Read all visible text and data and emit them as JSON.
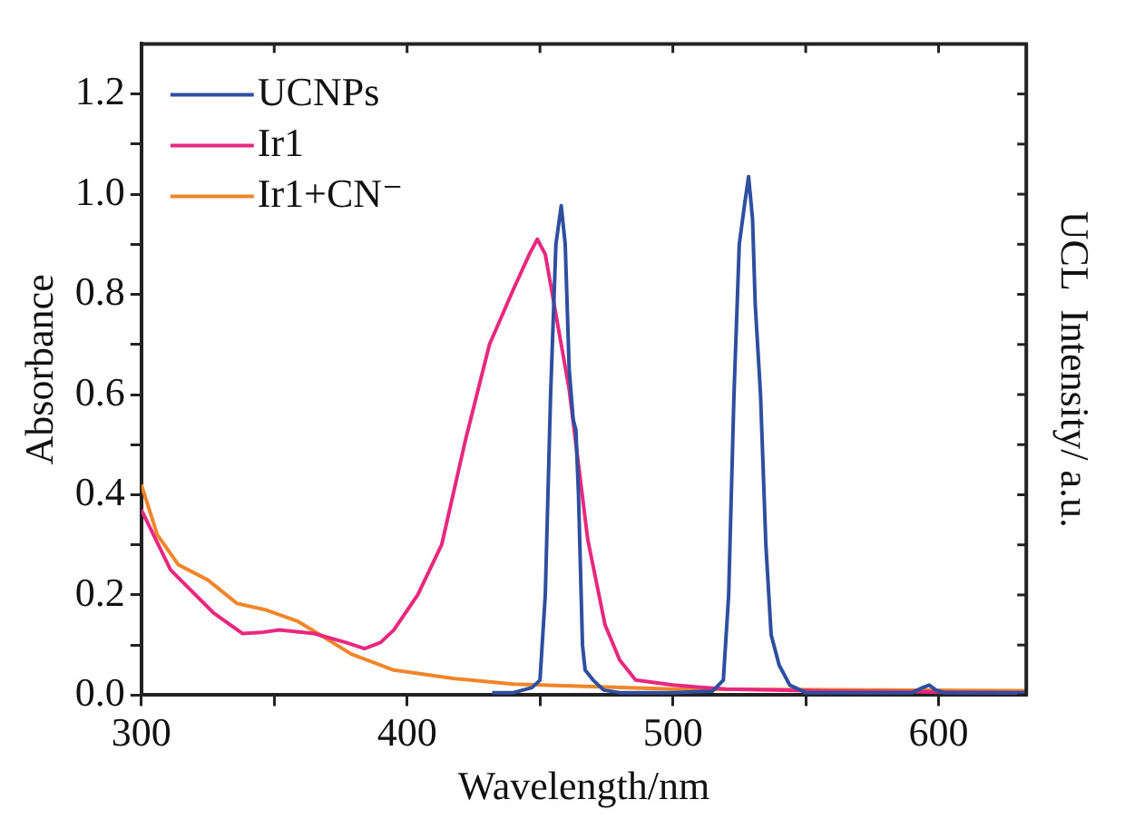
{
  "chart_data": {
    "type": "line",
    "xlabel": "Wavelength/nm",
    "ylabel": "Absorbance",
    "y2label": "UCL  Intensity/ a.u.",
    "xlim": [
      300,
      633
    ],
    "xticks": [
      300,
      {
        "value": 350,
        "label": null
      },
      400,
      {
        "value": 450,
        "label": null
      },
      500,
      {
        "value": 550,
        "label": null
      },
      600
    ],
    "ylim": [
      0,
      1.3
    ],
    "yticks": [
      "0.0",
      {
        "value": 0.1,
        "label": null
      },
      {
        "value": 0.2,
        "label": "0.2"
      },
      {
        "value": 0.3,
        "label": null
      },
      {
        "value": 0.4,
        "label": "0.4"
      },
      {
        "value": 0.5,
        "label": null
      },
      {
        "value": 0.6,
        "label": "0.6"
      },
      {
        "value": 0.7,
        "label": null
      },
      {
        "value": 0.8,
        "label": "0.8"
      },
      {
        "value": 0.9,
        "label": null
      },
      {
        "value": 1.0,
        "label": "1.0"
      },
      {
        "value": 1.1,
        "label": null
      },
      {
        "value": 1.2,
        "label": "1.2"
      }
    ],
    "grid": false,
    "legend": "top left",
    "marker": "none",
    "line_style": "solid",
    "series": [
      {
        "name": "UCNPs",
        "color": "#2e4ea0",
        "x": [
          432,
          440,
          447,
          450,
          452,
          454,
          456,
          458,
          459.5,
          461,
          462.5,
          463.5,
          464.5,
          466,
          467,
          470,
          474,
          480,
          500,
          515,
          519,
          521,
          523,
          525,
          527,
          528.5,
          530,
          531,
          533,
          535,
          537,
          540,
          544,
          550,
          590,
          594,
          596.5,
          599,
          602,
          633
        ],
        "values": [
          0.005,
          0.005,
          0.015,
          0.03,
          0.2,
          0.6,
          0.9,
          0.977,
          0.9,
          0.65,
          0.55,
          0.53,
          0.4,
          0.1,
          0.05,
          0.03,
          0.01,
          0.005,
          0.005,
          0.008,
          0.03,
          0.2,
          0.6,
          0.9,
          0.98,
          1.035,
          0.95,
          0.78,
          0.6,
          0.3,
          0.12,
          0.06,
          0.02,
          0.005,
          0.005,
          0.015,
          0.02,
          0.01,
          0.005,
          0.005
        ]
      },
      {
        "name": "Ir1",
        "color": "#e8277e",
        "x": [
          300,
          311,
          327,
          338,
          345,
          352,
          365,
          377,
          384,
          390,
          395,
          404,
          413,
          422,
          431,
          440,
          446,
          449,
          452,
          454,
          461,
          468,
          474.5,
          480,
          486,
          500,
          520,
          560,
          633
        ],
        "values": [
          0.37,
          0.25,
          0.165,
          0.123,
          0.125,
          0.13,
          0.123,
          0.105,
          0.093,
          0.105,
          0.13,
          0.2,
          0.3,
          0.51,
          0.7,
          0.81,
          0.88,
          0.91,
          0.88,
          0.82,
          0.61,
          0.31,
          0.14,
          0.07,
          0.03,
          0.02,
          0.012,
          0.008,
          0.005
        ]
      },
      {
        "name": "Ir1+CN⁻",
        "color": "#f0852a",
        "x": [
          300,
          306,
          314,
          325,
          336,
          347,
          359,
          368,
          379,
          395,
          418,
          440,
          500,
          633
        ],
        "values": [
          0.42,
          0.32,
          0.26,
          0.23,
          0.183,
          0.17,
          0.147,
          0.118,
          0.082,
          0.05,
          0.033,
          0.022,
          0.012,
          0.009
        ]
      }
    ]
  }
}
